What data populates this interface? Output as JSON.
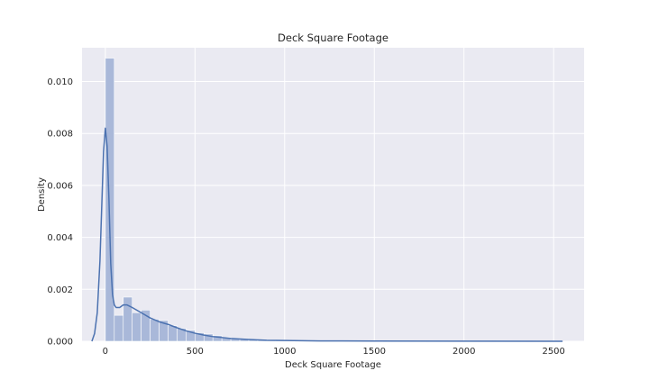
{
  "chart_data": {
    "type": "bar",
    "title": "Deck Square Footage",
    "xlabel": "Deck Square Footage",
    "ylabel": "Density",
    "xlim": [
      -130,
      2670
    ],
    "ylim": [
      0,
      0.0113
    ],
    "x_ticks": [
      0,
      500,
      1000,
      1500,
      2000,
      2500
    ],
    "x_tick_labels": [
      "0",
      "500",
      "1000",
      "1500",
      "2000",
      "2500"
    ],
    "y_ticks": [
      0,
      0.002,
      0.004,
      0.006,
      0.008,
      0.01
    ],
    "y_tick_labels": [
      "0.000",
      "0.002",
      "0.004",
      "0.006",
      "0.008",
      "0.010"
    ],
    "grid": true,
    "background_color": "#eaeaf2",
    "grid_color": "#ffffff",
    "bar_color": "#a9b8d9",
    "line_color": "#4c72b0",
    "histogram": {
      "bin_width": 50,
      "bins_start": [
        0,
        50,
        100,
        150,
        200,
        250,
        300,
        350,
        400,
        450,
        500,
        550,
        600,
        650,
        700,
        750,
        800,
        850,
        900,
        950,
        1000,
        1050,
        1100,
        1150,
        1200,
        1250,
        1300,
        1350,
        1400,
        1450,
        1500
      ],
      "density": [
        0.0109,
        0.001,
        0.0017,
        0.0011,
        0.0012,
        0.00085,
        0.0008,
        0.0006,
        0.0005,
        0.00042,
        0.00033,
        0.00028,
        0.00022,
        0.00015,
        0.00012,
        0.0001,
        8e-05,
        6e-05,
        5e-05,
        4e-05,
        3e-05,
        2.5e-05,
        2e-05,
        1.8e-05,
        1.5e-05,
        1.2e-05,
        1e-05,
        8e-06,
        6e-06,
        5e-06,
        4e-06
      ]
    },
    "kde": {
      "x": [
        -75,
        -60,
        -45,
        -30,
        -20,
        -10,
        0,
        10,
        20,
        30,
        40,
        50,
        60,
        70,
        80,
        100,
        120,
        150,
        200,
        250,
        300,
        350,
        400,
        450,
        500,
        550,
        600,
        700,
        800,
        900,
        1000,
        1200,
        1500,
        2000,
        2550
      ],
      "y": [
        0,
        0.0003,
        0.0011,
        0.0031,
        0.0052,
        0.0073,
        0.0082,
        0.0075,
        0.0055,
        0.003,
        0.0018,
        0.0014,
        0.0013,
        0.0013,
        0.0013,
        0.0014,
        0.0014,
        0.0013,
        0.0011,
        0.0009,
        0.00075,
        0.00065,
        0.00052,
        0.0004,
        0.00031,
        0.00024,
        0.00018,
        0.00011,
        7e-05,
        4e-05,
        3e-05,
        1.5e-05,
        8e-06,
        3e-06,
        0
      ]
    }
  }
}
